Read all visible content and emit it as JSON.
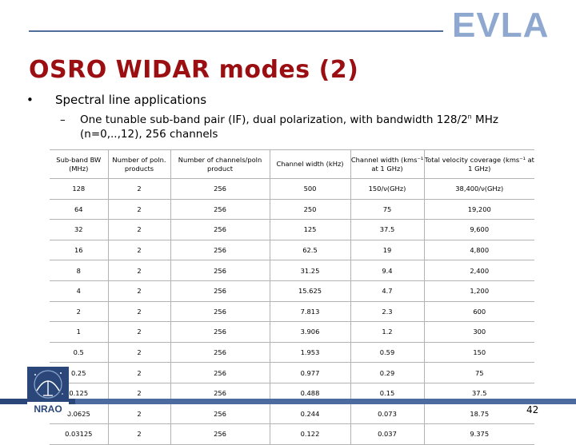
{
  "header": {
    "logo_text": "EVLA",
    "title": "OSRO WIDAR modes (2)"
  },
  "bullets": {
    "level1": "Spectral line applications",
    "level2_dash": "–",
    "level2_pre": "One tunable sub-band pair (IF), dual polarization, with bandwidth 128/2",
    "level2_sup": "n",
    "level2_post": " MHz (n=0,..,12), 256 channels"
  },
  "table": {
    "headers": [
      "Sub-band BW (MHz)",
      "Number of poln. products",
      "Number of channels/poln product",
      "Channel width (kHz)",
      "Channel width (kms⁻¹ at 1 GHz)",
      "Total velocity coverage (kms⁻¹ at 1 GHz)"
    ],
    "rows": [
      [
        "128",
        "2",
        "256",
        "500",
        "150/ν(GHz)",
        "38,400/ν(GHz)"
      ],
      [
        "64",
        "2",
        "256",
        "250",
        "75",
        "19,200"
      ],
      [
        "32",
        "2",
        "256",
        "125",
        "37.5",
        "9,600"
      ],
      [
        "16",
        "2",
        "256",
        "62.5",
        "19",
        "4,800"
      ],
      [
        "8",
        "2",
        "256",
        "31.25",
        "9.4",
        "2,400"
      ],
      [
        "4",
        "2",
        "256",
        "15.625",
        "4.7",
        "1,200"
      ],
      [
        "2",
        "2",
        "256",
        "7.813",
        "2.3",
        "600"
      ],
      [
        "1",
        "2",
        "256",
        "3.906",
        "1.2",
        "300"
      ],
      [
        "0.5",
        "2",
        "256",
        "1.953",
        "0.59",
        "150"
      ],
      [
        "0.25",
        "2",
        "256",
        "0.977",
        "0.29",
        "75"
      ],
      [
        "0.125",
        "2",
        "256",
        "0.488",
        "0.15",
        "37.5"
      ],
      [
        "0.0625",
        "2",
        "256",
        "0.244",
        "0.073",
        "18.75"
      ],
      [
        "0.03125",
        "2",
        "256",
        "0.122",
        "0.037",
        "9.375"
      ]
    ]
  },
  "footer": {
    "logo_text": "NRAO",
    "page_number": "42"
  },
  "colors": {
    "title": "#9b0f12",
    "evla_logo": "#8ea8cf",
    "bar": "#4a6aa0"
  }
}
